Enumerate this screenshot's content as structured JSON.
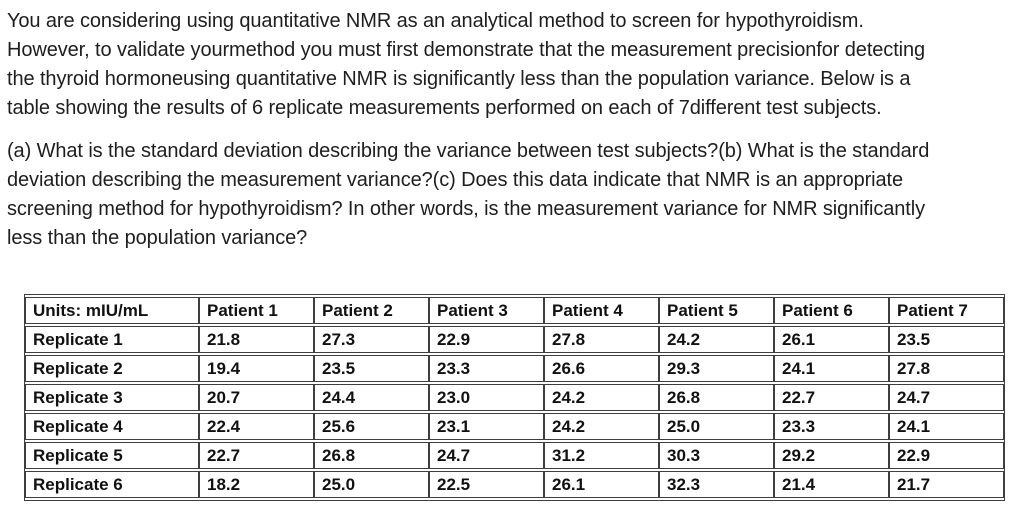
{
  "intro": {
    "lines": [
      "You are considering using quantitative NMR as an analytical method to screen for hypothyroidism.",
      "However, to validate yourmethod you must first demonstrate that the measurement precisionfor detecting",
      "the thyroid hormoneusing quantitative NMR is significantly less than the population variance. Below is a",
      "table showing the results of 6 replicate measurements performed on each of 7different test subjects."
    ]
  },
  "questions": {
    "lines": [
      "(a) What is the standard deviation describing the variance between test subjects?(b) What is the standard",
      "deviation describing the measurement variance?(c) Does this data indicate that NMR is an appropriate",
      "screening method for hypothyroidism? In other words, is the measurement variance for NMR significantly",
      "less than the population variance?"
    ]
  },
  "table": {
    "headers": [
      "Units: mIU/mL",
      "Patient 1",
      "Patient 2",
      "Patient 3",
      "Patient 4",
      "Patient 5",
      "Patient 6",
      "Patient 7"
    ],
    "rows": [
      {
        "label": "Replicate 1",
        "values": [
          "21.8",
          "27.3",
          "22.9",
          "27.8",
          "24.2",
          "26.1",
          "23.5"
        ]
      },
      {
        "label": "Replicate 2",
        "values": [
          "19.4",
          "23.5",
          "23.3",
          "26.6",
          "29.3",
          "24.1",
          "27.8"
        ]
      },
      {
        "label": "Replicate 3",
        "values": [
          "20.7",
          "24.4",
          "23.0",
          "24.2",
          "26.8",
          "22.7",
          "24.7"
        ]
      },
      {
        "label": "Replicate 4",
        "values": [
          "22.4",
          "25.6",
          "23.1",
          "24.2",
          "25.0",
          "23.3",
          "24.1"
        ]
      },
      {
        "label": "Replicate 5",
        "values": [
          "22.7",
          "26.8",
          "24.7",
          "31.2",
          "30.3",
          "29.2",
          "22.9"
        ]
      },
      {
        "label": "Replicate 6",
        "values": [
          "18.2",
          "25.0",
          "22.5",
          "26.1",
          "32.3",
          "21.4",
          "21.7"
        ]
      }
    ]
  },
  "colors": {
    "text": "#1e1e1e",
    "table_text": "#111111",
    "table_border": "#3f3f3f",
    "background": "#ffffff"
  }
}
